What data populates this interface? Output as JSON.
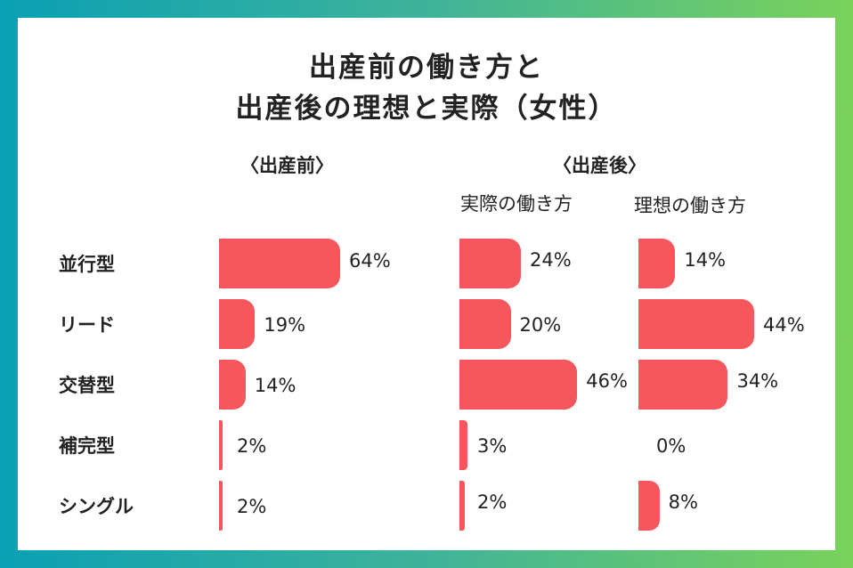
{
  "title_line1": "出産前の働き方と",
  "title_line2": "出産後の理想と実際（女性）",
  "groups": [
    {
      "name": "〈出産前〉",
      "sub": ""
    },
    {
      "name": "〈出産後〉",
      "sub": ""
    }
  ],
  "chart_data": {
    "type": "bar",
    "orientation": "horizontal",
    "categories": [
      "並行型",
      "リード",
      "交替型",
      "補完型",
      "シングル"
    ],
    "value_unit": "%",
    "series": [
      {
        "name": "",
        "group": "〈出産前〉",
        "values": [
          64,
          19,
          14,
          2,
          2
        ],
        "labels": [
          "64%",
          "19%",
          "14%",
          "2%",
          "2%"
        ]
      },
      {
        "name": "実際の働き方",
        "group": "〈出産後〉",
        "values": [
          24,
          20,
          46,
          3,
          2
        ],
        "labels": [
          "24%",
          "20%",
          "46%",
          "3%",
          "2%"
        ]
      },
      {
        "name": "理想の働き方",
        "group": "〈出産後〉",
        "values": [
          14,
          44,
          34,
          0,
          8
        ],
        "labels": [
          "14%",
          "44%",
          "34%",
          "0%",
          "8%"
        ]
      }
    ],
    "bar_color": "#f5575c",
    "grid": false,
    "legend": "none"
  },
  "colors": {
    "bar": "#f5575c",
    "text": "#222222",
    "background_gradient_start": "#0aa0b4",
    "background_gradient_end": "#7ad25a"
  }
}
